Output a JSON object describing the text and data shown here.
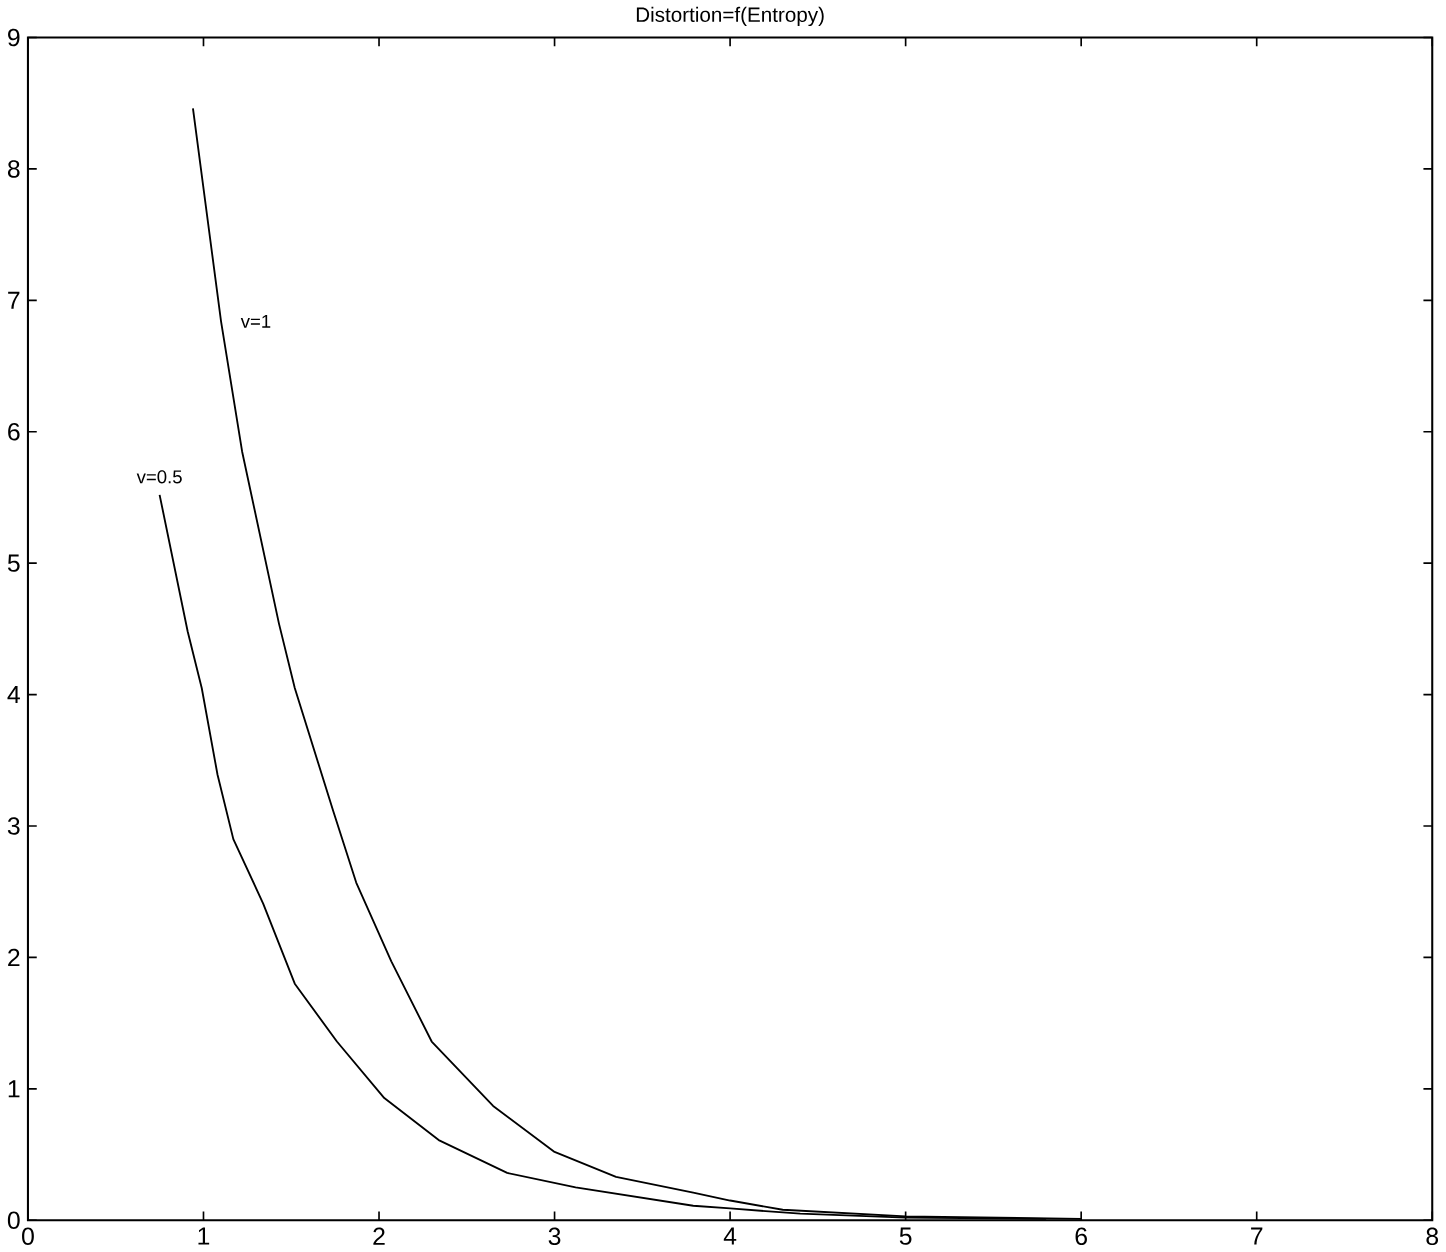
{
  "chart_data": {
    "type": "line",
    "title": "Distortion=f(Entropy)",
    "xlim": [
      0,
      8
    ],
    "ylim": [
      0,
      9
    ],
    "xticks": [
      0,
      1,
      2,
      3,
      4,
      5,
      6,
      7,
      8
    ],
    "yticks": [
      0,
      1,
      2,
      3,
      4,
      5,
      6,
      7,
      8,
      9
    ],
    "grid": false,
    "legend": false,
    "marker": "none",
    "line_style": "solid",
    "series": [
      {
        "name": "v=1",
        "color": "#000000",
        "x": [
          0.94,
          1.1,
          1.22,
          1.43,
          1.52,
          1.74,
          1.87,
          2.07,
          2.3,
          2.65,
          3.0,
          3.35,
          3.79,
          4.0,
          4.3,
          5.0,
          6.0
        ],
        "values": [
          8.46,
          6.84,
          5.85,
          4.54,
          4.05,
          3.11,
          2.57,
          1.97,
          1.36,
          0.87,
          0.52,
          0.33,
          0.21,
          0.15,
          0.08,
          0.03,
          0.01
        ]
      },
      {
        "name": "v=0.5",
        "color": "#000000",
        "x": [
          0.75,
          0.91,
          0.99,
          1.08,
          1.17,
          1.34,
          1.52,
          1.76,
          2.03,
          2.34,
          2.73,
          3.12,
          3.79,
          4.0,
          4.4,
          5.0,
          5.8
        ],
        "values": [
          5.52,
          4.48,
          4.05,
          3.39,
          2.9,
          2.41,
          1.8,
          1.36,
          0.93,
          0.61,
          0.36,
          0.25,
          0.11,
          0.09,
          0.05,
          0.02,
          0.01
        ]
      }
    ]
  }
}
